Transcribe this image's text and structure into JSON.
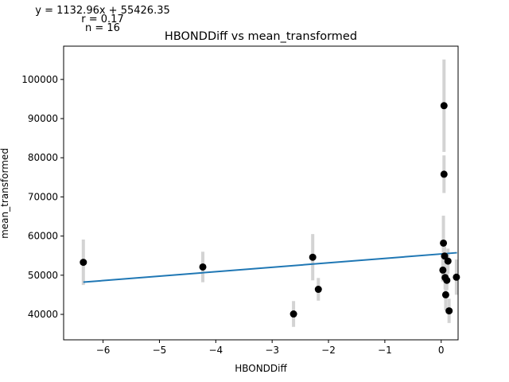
{
  "chart_data": {
    "type": "scatter",
    "title": "HBONDDiff vs mean_transformed",
    "xlabel": "HBONDDiff",
    "ylabel": "mean_transformed",
    "xlim": [
      -6.7,
      0.3
    ],
    "ylim": [
      33500,
      108500
    ],
    "xticks": [
      -6,
      -5,
      -4,
      -3,
      -2,
      -1,
      0
    ],
    "xtick_labels": [
      "−6",
      "−5",
      "−4",
      "−3",
      "−2",
      "−1",
      "0"
    ],
    "yticks": [
      40000,
      50000,
      60000,
      70000,
      80000,
      90000,
      100000
    ],
    "ytick_labels": [
      "40000",
      "50000",
      "60000",
      "70000",
      "80000",
      "90000",
      "100000"
    ],
    "annotations": [
      "y = 1132.96x + 55426.35",
      "r = 0.17",
      "n = 16"
    ],
    "fit": {
      "slope": 1132.96,
      "intercept": 55426.35,
      "x_range": [
        -6.35,
        0.28
      ]
    },
    "points": [
      {
        "x": -6.35,
        "y": 53300,
        "err": 5800
      },
      {
        "x": -4.23,
        "y": 52100,
        "err": 3900
      },
      {
        "x": -2.62,
        "y": 40100,
        "err": 3300
      },
      {
        "x": -2.28,
        "y": 54600,
        "err": 5900
      },
      {
        "x": -2.18,
        "y": 46400,
        "err": 2900
      },
      {
        "x": 0.03,
        "y": 51300,
        "err": 2900
      },
      {
        "x": 0.04,
        "y": 58200,
        "err": 7000
      },
      {
        "x": 0.05,
        "y": 93300,
        "err": 11800
      },
      {
        "x": 0.05,
        "y": 75800,
        "err": 4800
      },
      {
        "x": 0.06,
        "y": 54900,
        "err": 2500
      },
      {
        "x": 0.07,
        "y": 49400,
        "err": 3000
      },
      {
        "x": 0.08,
        "y": 45000,
        "err": 4000
      },
      {
        "x": 0.1,
        "y": 48700,
        "err": 2500
      },
      {
        "x": 0.12,
        "y": 53600,
        "err": 3200
      },
      {
        "x": 0.14,
        "y": 40900,
        "err": 3100
      },
      {
        "x": 0.27,
        "y": 49500,
        "err": 4500
      }
    ],
    "colors": {
      "points": "#000000",
      "fit": "#1f77b4",
      "errorbars": "#d3d3d3"
    }
  }
}
